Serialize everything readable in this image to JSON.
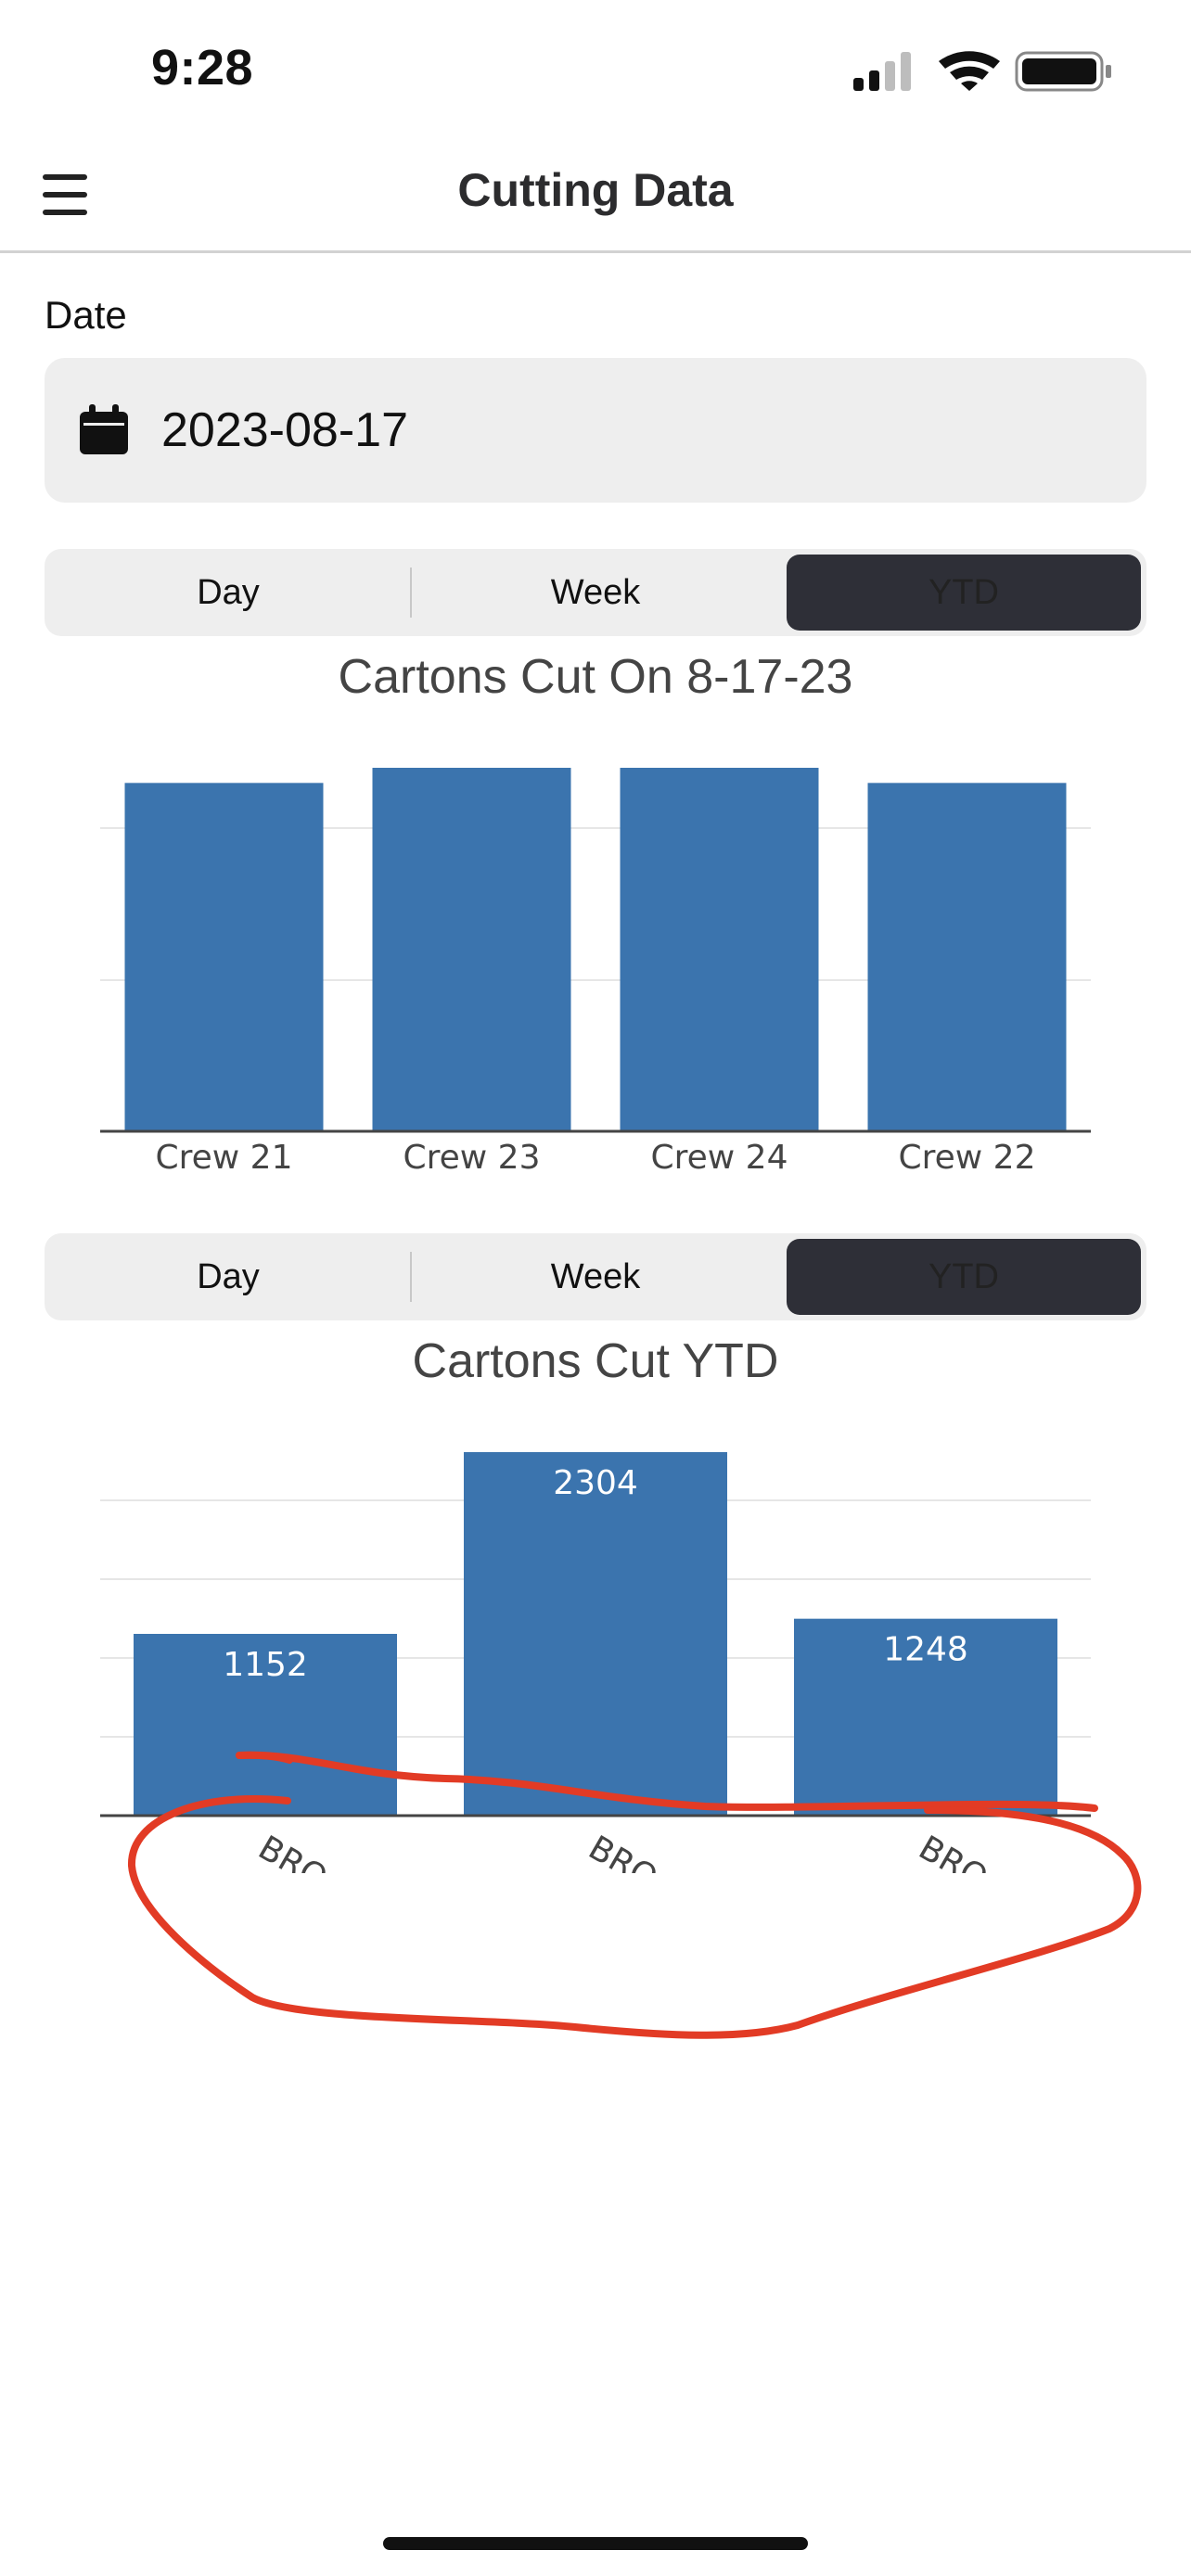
{
  "status_bar": {
    "time": "9:28"
  },
  "header": {
    "title": "Cutting Data"
  },
  "date": {
    "label": "Date",
    "value": "2023-08-17"
  },
  "segment1": {
    "options": [
      "Day",
      "Week",
      "YTD"
    ],
    "selected": "YTD"
  },
  "segment2": {
    "options": [
      "Day",
      "Week",
      "YTD"
    ],
    "selected": "YTD"
  },
  "charts": {
    "colors": {
      "bar": "#3b74ae",
      "grid": "#e6e6e6",
      "axis": "#444444",
      "annotation": "#e23b25"
    }
  },
  "chart_data": [
    {
      "type": "bar",
      "title": "Cartons Cut On 8-17-23",
      "categories": [
        "Crew 21",
        "Crew 23",
        "Crew 24",
        "Crew 22"
      ],
      "values": [
        2300,
        2400,
        2400,
        2300
      ],
      "ylim": [
        0,
        2400
      ],
      "grid": true
    },
    {
      "type": "bar",
      "title": "Cartons Cut YTD",
      "categories": [
        "BRO…",
        "BRO…",
        "BRO…"
      ],
      "values": [
        1152,
        2304,
        1248
      ],
      "data_labels": [
        "1152",
        "2304",
        "1248"
      ],
      "ylim": [
        0,
        2304
      ],
      "grid": true
    }
  ]
}
